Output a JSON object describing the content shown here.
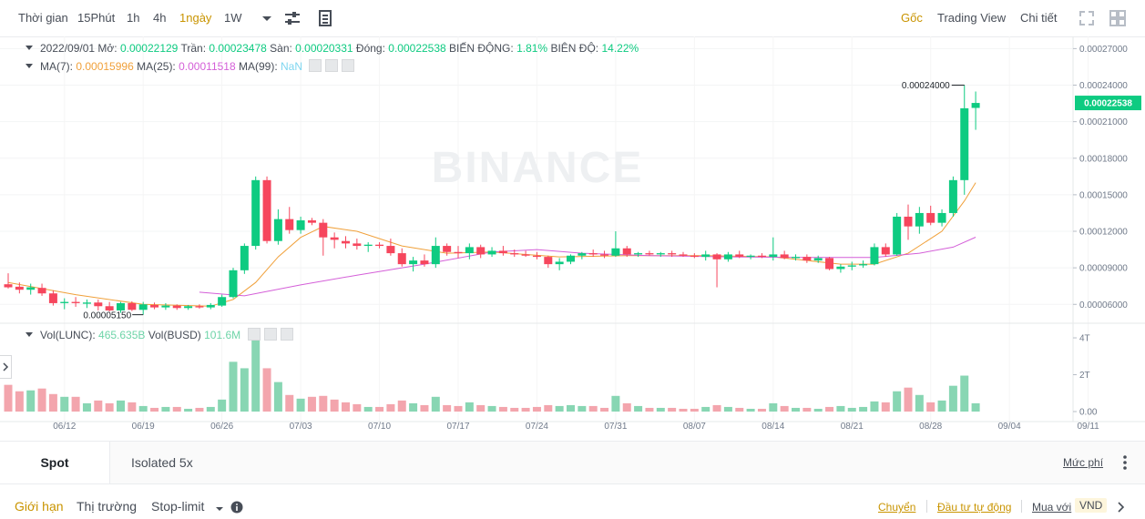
{
  "toolbar": {
    "intervals": [
      {
        "label": "Thời gian",
        "active": false
      },
      {
        "label": "15Phút",
        "active": false
      },
      {
        "label": "1h",
        "active": false
      },
      {
        "label": "4h",
        "active": false
      },
      {
        "label": "1ngày",
        "active": true
      },
      {
        "label": "1W",
        "active": false
      }
    ],
    "views": [
      "Gốc",
      "Trading View",
      "Chi tiết"
    ],
    "active_view": "Gốc",
    "icons": [
      "chevron-down-icon",
      "sliders-icon",
      "indicator-icon",
      "expand-icon",
      "grid-icon"
    ]
  },
  "ohlc": {
    "date": "2022/09/01",
    "open_label": "Mở:",
    "open": "0.00022129",
    "high_label": "Trần:",
    "high": "0.00023478",
    "low_label": "Sàn:",
    "low": "0.00020331",
    "close_label": "Đóng:",
    "close": "0.00022538",
    "change_label": "BIẾN ĐỘNG:",
    "change": "1.81%",
    "amp_label": "BIÊN ĐỘ:",
    "amp": "14.22%"
  },
  "ma": {
    "ma7_label": "MA(7):",
    "ma7": "0.00015996",
    "ma25_label": "MA(25):",
    "ma25": "0.00011518",
    "ma99_label": "MA(99):",
    "ma99": "NaN"
  },
  "vol": {
    "v1_label": "Vol(LUNC):",
    "v1": "465.635B",
    "v2_label": "Vol(BUSD)",
    "v2": "101.6M"
  },
  "watermark": "BINANCE",
  "colors": {
    "up": "#0ecb81",
    "down": "#f6465d",
    "up_vol": "#88d6b3",
    "down_vol": "#f3a5ad",
    "ma7": "#f0a03a",
    "ma25": "#d45fd8",
    "accent": "#c99400"
  },
  "chart_data": {
    "type": "candlestick",
    "price_ticks": [
      "0.00027000",
      "0.00024000",
      "0.00021000",
      "0.00018000",
      "0.00015000",
      "0.00012000",
      "0.00009000",
      "0.00006000"
    ],
    "price_range": [
      4.45e-05,
      0.00028
    ],
    "last_price": "0.00022538",
    "high_annotation": "0.00024000",
    "low_annotation": "0.00005150",
    "volume_ticks": [
      "4T",
      "2T",
      "0.00"
    ],
    "volume_range": [
      0,
      4.2
    ],
    "date_ticks": [
      "06/12",
      "06/19",
      "06/26",
      "07/03",
      "07/10",
      "07/17",
      "07/24",
      "07/31",
      "08/07",
      "08/14",
      "08/21",
      "08/28",
      "09/04",
      "09/11"
    ],
    "date_range": [
      "2022-06-07",
      "2022-09-01"
    ],
    "candles": [
      {
        "d": "2022-06-07",
        "o": 7.65e-05,
        "h": 8.55e-05,
        "l": 7.3e-05,
        "c": 7.4e-05,
        "v": 1.45
      },
      {
        "d": "2022-06-08",
        "o": 7.45e-05,
        "h": 7.8e-05,
        "l": 6.9e-05,
        "c": 7.2e-05,
        "v": 1.1
      },
      {
        "d": "2022-06-09",
        "o": 7.2e-05,
        "h": 7.7e-05,
        "l": 6.8e-05,
        "c": 7.4e-05,
        "v": 1.15
      },
      {
        "d": "2022-06-10",
        "o": 7.35e-05,
        "h": 7.7e-05,
        "l": 6.7e-05,
        "c": 6.9e-05,
        "v": 1.25
      },
      {
        "d": "2022-06-11",
        "o": 6.9e-05,
        "h": 7.15e-05,
        "l": 5.9e-05,
        "c": 6.1e-05,
        "v": 0.95
      },
      {
        "d": "2022-06-12",
        "o": 6.1e-05,
        "h": 6.5e-05,
        "l": 5.6e-05,
        "c": 6.2e-05,
        "v": 0.8
      },
      {
        "d": "2022-06-13",
        "o": 6.2e-05,
        "h": 6.6e-05,
        "l": 5.8e-05,
        "c": 6.1e-05,
        "v": 0.8
      },
      {
        "d": "2022-06-14",
        "o": 6.05e-05,
        "h": 6.4e-05,
        "l": 5.7e-05,
        "c": 6.15e-05,
        "v": 0.45
      },
      {
        "d": "2022-06-15",
        "o": 6.15e-05,
        "h": 6.4e-05,
        "l": 5.5e-05,
        "c": 5.85e-05,
        "v": 0.6
      },
      {
        "d": "2022-06-16",
        "o": 5.85e-05,
        "h": 6.2e-05,
        "l": 5.4e-05,
        "c": 5.5e-05,
        "v": 0.45
      },
      {
        "d": "2022-06-17",
        "o": 5.5e-05,
        "h": 6.2e-05,
        "l": 5.3e-05,
        "c": 6.1e-05,
        "v": 0.6
      },
      {
        "d": "2022-06-18",
        "o": 6.1e-05,
        "h": 6.25e-05,
        "l": 5.45e-05,
        "c": 5.55e-05,
        "v": 0.5
      },
      {
        "d": "2022-06-19",
        "o": 5.55e-05,
        "h": 6.2e-05,
        "l": 5.15e-05,
        "c": 6e-05,
        "v": 0.3
      },
      {
        "d": "2022-06-20",
        "o": 5.95e-05,
        "h": 6.15e-05,
        "l": 5.6e-05,
        "c": 5.75e-05,
        "v": 0.2
      },
      {
        "d": "2022-06-21",
        "o": 5.75e-05,
        "h": 6.1e-05,
        "l": 5.55e-05,
        "c": 5.9e-05,
        "v": 0.25
      },
      {
        "d": "2022-06-22",
        "o": 5.9e-05,
        "h": 6e-05,
        "l": 5.55e-05,
        "c": 5.7e-05,
        "v": 0.25
      },
      {
        "d": "2022-06-23",
        "o": 5.7e-05,
        "h": 5.95e-05,
        "l": 5.55e-05,
        "c": 5.85e-05,
        "v": 0.15
      },
      {
        "d": "2022-06-24",
        "o": 5.85e-05,
        "h": 6e-05,
        "l": 5.65e-05,
        "c": 5.75e-05,
        "v": 0.2
      },
      {
        "d": "2022-06-25",
        "o": 5.75e-05,
        "h": 6.1e-05,
        "l": 5.6e-05,
        "c": 5.95e-05,
        "v": 0.25
      },
      {
        "d": "2022-06-26",
        "o": 5.9e-05,
        "h": 6.8e-05,
        "l": 5.8e-05,
        "c": 6.6e-05,
        "v": 0.65
      },
      {
        "d": "2022-06-27",
        "o": 6.6e-05,
        "h": 9e-05,
        "l": 6.5e-05,
        "c": 8.8e-05,
        "v": 2.7
      },
      {
        "d": "2022-06-28",
        "o": 8.8e-05,
        "h": 0.00011,
        "l": 8.5e-05,
        "c": 0.000108,
        "v": 2.35
      },
      {
        "d": "2022-06-29",
        "o": 0.000108,
        "h": 0.000165,
        "l": 0.000105,
        "c": 0.000162,
        "v": 3.95
      },
      {
        "d": "2022-06-30",
        "o": 0.000162,
        "h": 0.000165,
        "l": 0.00011,
        "c": 0.000112,
        "v": 2.35
      },
      {
        "d": "2022-07-01",
        "o": 0.000112,
        "h": 0.000138,
        "l": 0.000109,
        "c": 0.00013,
        "v": 1.6
      },
      {
        "d": "2022-07-02",
        "o": 0.00013,
        "h": 0.00014,
        "l": 0.000118,
        "c": 0.000121,
        "v": 0.9
      },
      {
        "d": "2022-07-03",
        "o": 0.000121,
        "h": 0.000132,
        "l": 0.000118,
        "c": 0.000129,
        "v": 0.7
      },
      {
        "d": "2022-07-04",
        "o": 0.000129,
        "h": 0.000131,
        "l": 0.000125,
        "c": 0.000127,
        "v": 0.8
      },
      {
        "d": "2022-07-05",
        "o": 0.000127,
        "h": 0.00013,
        "l": 0.0001,
        "c": 0.000115,
        "v": 0.85
      },
      {
        "d": "2022-07-06",
        "o": 0.000115,
        "h": 0.000119,
        "l": 0.000106,
        "c": 0.000113,
        "v": 0.65
      },
      {
        "d": "2022-07-07",
        "o": 0.000112,
        "h": 0.000116,
        "l": 0.000106,
        "c": 0.00011,
        "v": 0.5
      },
      {
        "d": "2022-07-08",
        "o": 0.00011,
        "h": 0.000114,
        "l": 0.000105,
        "c": 0.000108,
        "v": 0.4
      },
      {
        "d": "2022-07-09",
        "o": 0.000108,
        "h": 0.000111,
        "l": 0.000103,
        "c": 0.000109,
        "v": 0.25
      },
      {
        "d": "2022-07-10",
        "o": 0.000109,
        "h": 0.000111,
        "l": 0.000106,
        "c": 0.000108,
        "v": 0.25
      },
      {
        "d": "2022-07-11",
        "o": 0.000108,
        "h": 0.000114,
        "l": 0.0001,
        "c": 0.000102,
        "v": 0.4
      },
      {
        "d": "2022-07-12",
        "o": 0.000102,
        "h": 0.000106,
        "l": 9.1e-05,
        "c": 9.3e-05,
        "v": 0.6
      },
      {
        "d": "2022-07-13",
        "o": 9.3e-05,
        "h": 9.9e-05,
        "l": 8.7e-05,
        "c": 9.6e-05,
        "v": 0.45
      },
      {
        "d": "2022-07-14",
        "o": 9.6e-05,
        "h": 0.000101,
        "l": 9.1e-05,
        "c": 9.3e-05,
        "v": 0.35
      },
      {
        "d": "2022-07-15",
        "o": 9.3e-05,
        "h": 0.000115,
        "l": 9e-05,
        "c": 0.000108,
        "v": 0.8
      },
      {
        "d": "2022-07-16",
        "o": 0.000108,
        "h": 0.00011,
        "l": 0.0001,
        "c": 0.000103,
        "v": 0.35
      },
      {
        "d": "2022-07-17",
        "o": 0.000103,
        "h": 0.000108,
        "l": 9.8e-05,
        "c": 0.000102,
        "v": 0.3
      },
      {
        "d": "2022-07-18",
        "o": 0.000102,
        "h": 0.00011,
        "l": 9.7e-05,
        "c": 0.000107,
        "v": 0.5
      },
      {
        "d": "2022-07-19",
        "o": 0.000107,
        "h": 0.000109,
        "l": 9.8e-05,
        "c": 0.000101,
        "v": 0.35
      },
      {
        "d": "2022-07-20",
        "o": 0.000101,
        "h": 0.000107,
        "l": 9.9e-05,
        "c": 0.000104,
        "v": 0.3
      },
      {
        "d": "2022-07-21",
        "o": 0.000104,
        "h": 0.000108,
        "l": 0.0001,
        "c": 0.000102,
        "v": 0.25
      },
      {
        "d": "2022-07-22",
        "o": 0.000102,
        "h": 0.000105,
        "l": 9.9e-05,
        "c": 0.000101,
        "v": 0.2
      },
      {
        "d": "2022-07-23",
        "o": 0.000101,
        "h": 0.000104,
        "l": 9.9e-05,
        "c": 0.0001,
        "v": 0.2
      },
      {
        "d": "2022-07-24",
        "o": 0.0001,
        "h": 0.000103,
        "l": 9.7e-05,
        "c": 9.9e-05,
        "v": 0.25
      },
      {
        "d": "2022-07-25",
        "o": 9.9e-05,
        "h": 0.0001,
        "l": 9e-05,
        "c": 9.3e-05,
        "v": 0.35
      },
      {
        "d": "2022-07-26",
        "o": 9.3e-05,
        "h": 9.8e-05,
        "l": 8.8e-05,
        "c": 9.5e-05,
        "v": 0.3
      },
      {
        "d": "2022-07-27",
        "o": 9.5e-05,
        "h": 0.000101,
        "l": 9.3e-05,
        "c": 0.0001,
        "v": 0.35
      },
      {
        "d": "2022-07-28",
        "o": 0.0001,
        "h": 0.000103,
        "l": 9.7e-05,
        "c": 0.000102,
        "v": 0.3
      },
      {
        "d": "2022-07-29",
        "o": 0.000102,
        "h": 0.000105,
        "l": 9.9e-05,
        "c": 0.000101,
        "v": 0.3
      },
      {
        "d": "2022-07-30",
        "o": 0.000101,
        "h": 0.000104,
        "l": 9.8e-05,
        "c": 0.0001,
        "v": 0.2
      },
      {
        "d": "2022-07-31",
        "o": 0.0001,
        "h": 0.00012,
        "l": 9.9e-05,
        "c": 0.000106,
        "v": 0.85
      },
      {
        "d": "2022-08-01",
        "o": 0.000106,
        "h": 0.000108,
        "l": 9.9e-05,
        "c": 0.000101,
        "v": 0.45
      },
      {
        "d": "2022-08-02",
        "o": 0.000101,
        "h": 0.000103,
        "l": 9.9e-05,
        "c": 0.000102,
        "v": 0.3
      },
      {
        "d": "2022-08-03",
        "o": 0.000102,
        "h": 0.000104,
        "l": 0.0001,
        "c": 0.000101,
        "v": 0.2
      },
      {
        "d": "2022-08-04",
        "o": 0.000101,
        "h": 0.000103,
        "l": 9.9e-05,
        "c": 0.000102,
        "v": 0.2
      },
      {
        "d": "2022-08-05",
        "o": 0.000102,
        "h": 0.000104,
        "l": 9.9e-05,
        "c": 0.000101,
        "v": 0.2
      },
      {
        "d": "2022-08-06",
        "o": 0.000101,
        "h": 0.000103,
        "l": 9.9e-05,
        "c": 0.0001,
        "v": 0.15
      },
      {
        "d": "2022-08-07",
        "o": 0.0001,
        "h": 0.000102,
        "l": 9.8e-05,
        "c": 9.9e-05,
        "v": 0.15
      },
      {
        "d": "2022-08-08",
        "o": 9.9e-05,
        "h": 0.000104,
        "l": 9.6e-05,
        "c": 0.000101,
        "v": 0.25
      },
      {
        "d": "2022-08-09",
        "o": 0.000101,
        "h": 0.000102,
        "l": 7.4e-05,
        "c": 9.7e-05,
        "v": 0.35
      },
      {
        "d": "2022-08-10",
        "o": 9.7e-05,
        "h": 0.000103,
        "l": 9.5e-05,
        "c": 0.000101,
        "v": 0.25
      },
      {
        "d": "2022-08-11",
        "o": 0.000101,
        "h": 0.000104,
        "l": 9.8e-05,
        "c": 9.9e-05,
        "v": 0.2
      },
      {
        "d": "2022-08-12",
        "o": 9.9e-05,
        "h": 0.000101,
        "l": 9.7e-05,
        "c": 0.0001,
        "v": 0.15
      },
      {
        "d": "2022-08-13",
        "o": 0.0001,
        "h": 0.000102,
        "l": 9.8e-05,
        "c": 9.9e-05,
        "v": 0.15
      },
      {
        "d": "2022-08-14",
        "o": 9.9e-05,
        "h": 0.000115,
        "l": 9.6e-05,
        "c": 0.000101,
        "v": 0.45
      },
      {
        "d": "2022-08-15",
        "o": 0.000101,
        "h": 0.000104,
        "l": 9.7e-05,
        "c": 9.8e-05,
        "v": 0.3
      },
      {
        "d": "2022-08-16",
        "o": 9.8e-05,
        "h": 0.000101,
        "l": 9.6e-05,
        "c": 9.9e-05,
        "v": 0.2
      },
      {
        "d": "2022-08-17",
        "o": 9.9e-05,
        "h": 0.000101,
        "l": 9.4e-05,
        "c": 9.6e-05,
        "v": 0.2
      },
      {
        "d": "2022-08-18",
        "o": 9.6e-05,
        "h": 0.0001,
        "l": 9.4e-05,
        "c": 9.8e-05,
        "v": 0.15
      },
      {
        "d": "2022-08-19",
        "o": 9.8e-05,
        "h": 9.9e-05,
        "l": 8.8e-05,
        "c": 8.9e-05,
        "v": 0.25
      },
      {
        "d": "2022-08-20",
        "o": 8.9e-05,
        "h": 9.3e-05,
        "l": 8.6e-05,
        "c": 9.1e-05,
        "v": 0.3
      },
      {
        "d": "2022-08-21",
        "o": 9.1e-05,
        "h": 9.5e-05,
        "l": 8.8e-05,
        "c": 9.2e-05,
        "v": 0.2
      },
      {
        "d": "2022-08-22",
        "o": 9.2e-05,
        "h": 9.6e-05,
        "l": 9e-05,
        "c": 9.3e-05,
        "v": 0.25
      },
      {
        "d": "2022-08-23",
        "o": 9.3e-05,
        "h": 0.00011,
        "l": 9.2e-05,
        "c": 0.000107,
        "v": 0.55
      },
      {
        "d": "2022-08-24",
        "o": 0.000107,
        "h": 0.00011,
        "l": 9.9e-05,
        "c": 0.000101,
        "v": 0.5
      },
      {
        "d": "2022-08-25",
        "o": 0.000101,
        "h": 0.000135,
        "l": 0.0001,
        "c": 0.000132,
        "v": 1.1
      },
      {
        "d": "2022-08-26",
        "o": 0.000132,
        "h": 0.000142,
        "l": 0.000113,
        "c": 0.000124,
        "v": 1.3
      },
      {
        "d": "2022-08-27",
        "o": 0.000124,
        "h": 0.00014,
        "l": 0.000118,
        "c": 0.000135,
        "v": 0.9
      },
      {
        "d": "2022-08-28",
        "o": 0.000135,
        "h": 0.000141,
        "l": 0.000125,
        "c": 0.000127,
        "v": 0.5
      },
      {
        "d": "2022-08-29",
        "o": 0.000127,
        "h": 0.000138,
        "l": 0.000124,
        "c": 0.000135,
        "v": 0.6
      },
      {
        "d": "2022-08-30",
        "o": 0.000135,
        "h": 0.000165,
        "l": 0.000132,
        "c": 0.000162,
        "v": 1.4
      },
      {
        "d": "2022-08-31",
        "o": 0.000162,
        "h": 0.00024,
        "l": 0.00015,
        "c": 0.000221,
        "v": 1.95
      },
      {
        "d": "2022-09-01",
        "o": 0.00022129,
        "h": 0.00023478,
        "l": 0.00020331,
        "c": 0.00022538,
        "v": 0.45
      }
    ],
    "ma7_series": [
      {
        "d": "2022-06-07",
        "v": 7.8e-05
      },
      {
        "d": "2022-06-13",
        "v": 6.8e-05
      },
      {
        "d": "2022-06-19",
        "v": 6e-05
      },
      {
        "d": "2022-06-25",
        "v": 5.85e-05
      },
      {
        "d": "2022-06-27",
        "v": 6.4e-05
      },
      {
        "d": "2022-06-29",
        "v": 7.8e-05
      },
      {
        "d": "2022-07-01",
        "v": 9.9e-05
      },
      {
        "d": "2022-07-03",
        "v": 0.000115
      },
      {
        "d": "2022-07-05",
        "v": 0.000124
      },
      {
        "d": "2022-07-08",
        "v": 0.00012
      },
      {
        "d": "2022-07-12",
        "v": 0.000108
      },
      {
        "d": "2022-07-16",
        "v": 0.000102
      },
      {
        "d": "2022-07-20",
        "v": 0.000103
      },
      {
        "d": "2022-07-26",
        "v": 9.9e-05
      },
      {
        "d": "2022-08-01",
        "v": 0.0001
      },
      {
        "d": "2022-08-08",
        "v": 0.0001
      },
      {
        "d": "2022-08-14",
        "v": 9.9e-05
      },
      {
        "d": "2022-08-20",
        "v": 9.3e-05
      },
      {
        "d": "2022-08-23",
        "v": 9.3e-05
      },
      {
        "d": "2022-08-26",
        "v": 0.000102
      },
      {
        "d": "2022-08-29",
        "v": 0.00012
      },
      {
        "d": "2022-08-31",
        "v": 0.000145
      },
      {
        "d": "2022-09-01",
        "v": 0.00015996
      }
    ],
    "ma25_series": [
      {
        "d": "2022-06-24",
        "v": 7e-05
      },
      {
        "d": "2022-06-28",
        "v": 6.7e-05
      },
      {
        "d": "2022-07-03",
        "v": 7.6e-05
      },
      {
        "d": "2022-07-08",
        "v": 8.4e-05
      },
      {
        "d": "2022-07-14",
        "v": 9.3e-05
      },
      {
        "d": "2022-07-20",
        "v": 0.000103
      },
      {
        "d": "2022-07-24",
        "v": 0.000105
      },
      {
        "d": "2022-07-28",
        "v": 0.000102
      },
      {
        "d": "2022-08-03",
        "v": 0.0001
      },
      {
        "d": "2022-08-10",
        "v": 9.9e-05
      },
      {
        "d": "2022-08-17",
        "v": 9.85e-05
      },
      {
        "d": "2022-08-23",
        "v": 9.85e-05
      },
      {
        "d": "2022-08-27",
        "v": 0.000102
      },
      {
        "d": "2022-08-30",
        "v": 0.000107
      },
      {
        "d": "2022-09-01",
        "v": 0.00011518
      }
    ]
  },
  "tabs": {
    "spot": "Spot",
    "isolated": "Isolated 5x",
    "fee": "Mức phí"
  },
  "order": {
    "types": [
      "Giới hạn",
      "Thị trường",
      "Stop-limit"
    ],
    "active": "Giới hạn",
    "transfer": "Chuyển",
    "auto_invest": "Đầu tư tự động",
    "buy_with": "Mua với",
    "currency": "VND"
  }
}
